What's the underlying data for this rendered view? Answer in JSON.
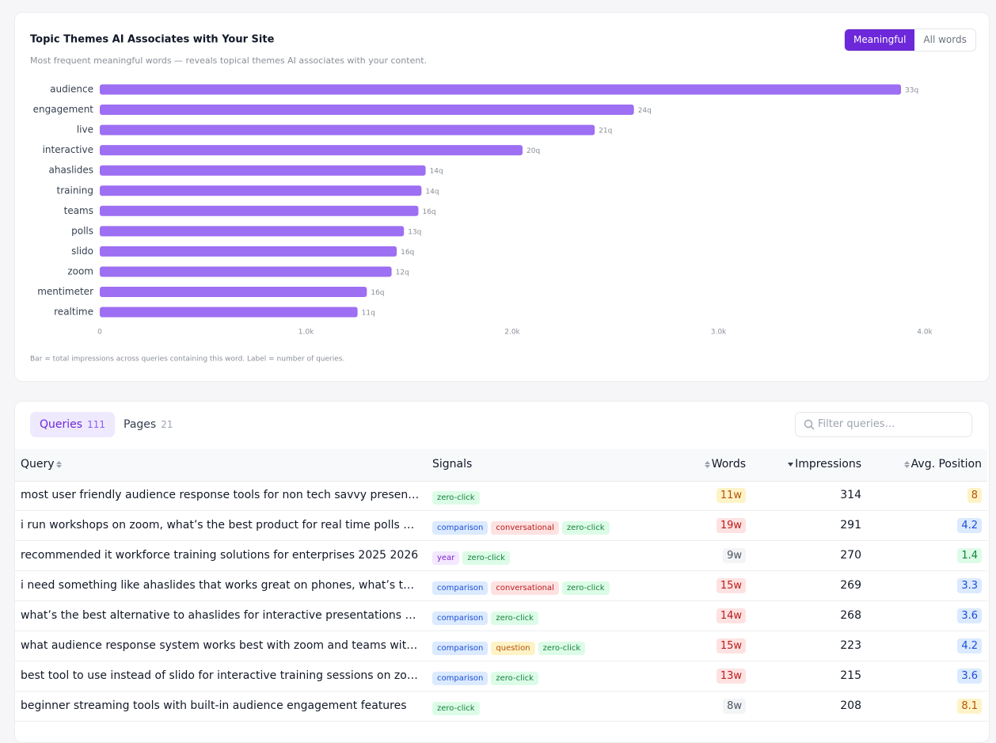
{
  "chart_data": {
    "type": "bar",
    "orientation": "horizontal",
    "title": "Topic Themes AI Associates with Your Site",
    "subtitle": "Most frequent meaningful words — reveals topical themes AI associates with your content.",
    "categories": [
      "audience",
      "engagement",
      "live",
      "interactive",
      "ahaslides",
      "training",
      "teams",
      "polls",
      "slido",
      "zoom",
      "mentimeter",
      "realtime"
    ],
    "values": [
      3885,
      2590,
      2400,
      2050,
      1580,
      1560,
      1545,
      1475,
      1440,
      1415,
      1295,
      1250
    ],
    "query_labels": [
      "33q",
      "24q",
      "21q",
      "20q",
      "14q",
      "14q",
      "16q",
      "13q",
      "16q",
      "12q",
      "16q",
      "11q"
    ],
    "color": "#9d6ff2",
    "xlim": [
      0,
      4000
    ],
    "xticks": [
      0,
      {
        "value": 1000,
        "label": "1.0k"
      },
      {
        "value": 2000,
        "label": "2.0k"
      },
      {
        "value": 3000,
        "label": "3.0k"
      },
      {
        "value": 4000,
        "label": "4.0k"
      }
    ],
    "grid": false,
    "note": "Bar = total impressions across queries containing this word. Label = number of queries."
  },
  "toggle": {
    "options": [
      "Meaningful",
      "All words"
    ],
    "active": 0
  },
  "tabs": [
    {
      "label": "Queries",
      "count": 111
    },
    {
      "label": "Pages",
      "count": 21
    }
  ],
  "active_tab": 0,
  "search_placeholder": "Filter queries…",
  "table": {
    "columns": [
      "Query",
      "Signals",
      "Words",
      "Impressions",
      "Avg. Position"
    ],
    "sort": {
      "column": 3,
      "direction": "desc"
    },
    "rows": [
      {
        "query": "most user friendly audience response tools for non tech savvy presenters",
        "signals": [
          {
            "label": "zero-click",
            "tone": "green"
          }
        ],
        "words": {
          "label": "11w",
          "tone": "yellow"
        },
        "impressions": 314,
        "position": {
          "value": 8,
          "tone": "yellow"
        }
      },
      {
        "query": "i run workshops on zoom, what’s the best product for real time polls and q&…",
        "signals": [
          {
            "label": "comparison",
            "tone": "blue"
          },
          {
            "label": "conversational",
            "tone": "red"
          },
          {
            "label": "zero-click",
            "tone": "green"
          }
        ],
        "words": {
          "label": "19w",
          "tone": "red"
        },
        "impressions": 291,
        "position": {
          "value": 4.2,
          "tone": "blue"
        }
      },
      {
        "query": "recommended it workforce training solutions for enterprises 2025 2026",
        "signals": [
          {
            "label": "year",
            "tone": "purple"
          },
          {
            "label": "zero-click",
            "tone": "green"
          }
        ],
        "words": {
          "label": "9w",
          "tone": "gray"
        },
        "impressions": 270,
        "position": {
          "value": 1.4,
          "tone": "green"
        }
      },
      {
        "query": "i need something like ahaslides that works great on phones, what’s the best…",
        "signals": [
          {
            "label": "comparison",
            "tone": "blue"
          },
          {
            "label": "conversational",
            "tone": "red"
          },
          {
            "label": "zero-click",
            "tone": "green"
          }
        ],
        "words": {
          "label": "15w",
          "tone": "red"
        },
        "impressions": 269,
        "position": {
          "value": 3.3,
          "tone": "blue"
        }
      },
      {
        "query": "what’s the best alternative to ahaslides for interactive presentations with p…",
        "signals": [
          {
            "label": "comparison",
            "tone": "blue"
          },
          {
            "label": "zero-click",
            "tone": "green"
          }
        ],
        "words": {
          "label": "14w",
          "tone": "red"
        },
        "impressions": 268,
        "position": {
          "value": 3.6,
          "tone": "blue"
        }
      },
      {
        "query": "what audience response system works best with zoom and teams without a…",
        "signals": [
          {
            "label": "comparison",
            "tone": "blue"
          },
          {
            "label": "question",
            "tone": "yellow"
          },
          {
            "label": "zero-click",
            "tone": "green"
          }
        ],
        "words": {
          "label": "15w",
          "tone": "red"
        },
        "impressions": 223,
        "position": {
          "value": 4.2,
          "tone": "blue"
        }
      },
      {
        "query": "best tool to use instead of slido for interactive training sessions on zoom",
        "signals": [
          {
            "label": "comparison",
            "tone": "blue"
          },
          {
            "label": "zero-click",
            "tone": "green"
          }
        ],
        "words": {
          "label": "13w",
          "tone": "red"
        },
        "impressions": 215,
        "position": {
          "value": 3.6,
          "tone": "blue"
        }
      },
      {
        "query": "beginner streaming tools with built-in audience engagement features",
        "signals": [
          {
            "label": "zero-click",
            "tone": "green"
          }
        ],
        "words": {
          "label": "8w",
          "tone": "gray"
        },
        "impressions": 208,
        "position": {
          "value": 8.1,
          "tone": "yellow"
        }
      }
    ]
  }
}
